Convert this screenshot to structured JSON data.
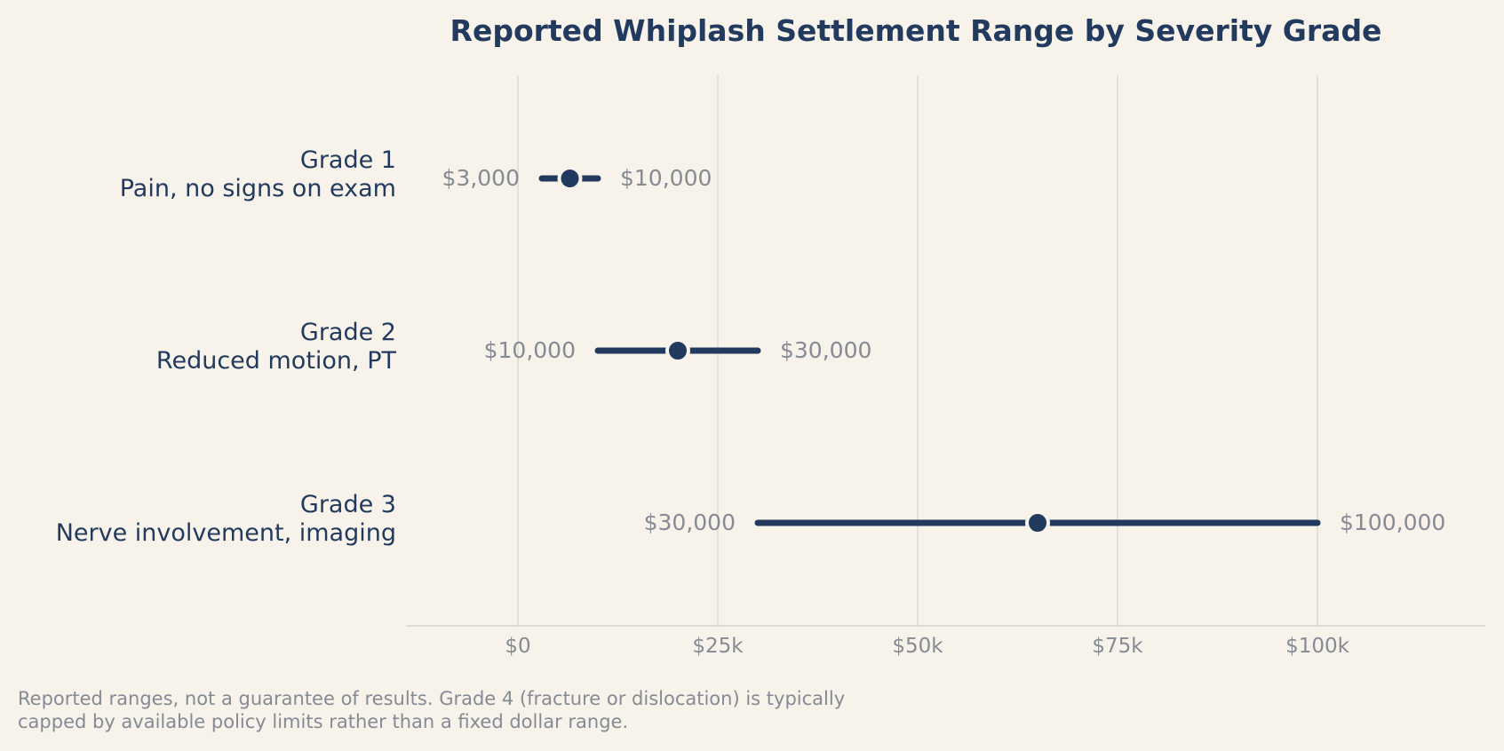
{
  "chart_data": {
    "type": "range",
    "title": "Reported Whiplash Settlement Range by Severity Grade",
    "xlabel": "",
    "ylabel": "",
    "xlim": [
      -14000,
      121000
    ],
    "ticks": [
      {
        "value": 0,
        "label": "$0"
      },
      {
        "value": 25000,
        "label": "$25k"
      },
      {
        "value": 50000,
        "label": "$50k"
      },
      {
        "value": 75000,
        "label": "$75k"
      },
      {
        "value": 100000,
        "label": "$100k"
      }
    ],
    "grid": "vertical",
    "rows": [
      {
        "category": "Grade 1",
        "description": "Pain, no signs on exam",
        "low": 3000,
        "high": 10000,
        "mid": 6500,
        "low_label": "$3,000",
        "high_label": "$10,000"
      },
      {
        "category": "Grade 2",
        "description": "Reduced motion, PT",
        "low": 10000,
        "high": 30000,
        "mid": 20000,
        "low_label": "$10,000",
        "high_label": "$30,000"
      },
      {
        "category": "Grade 3",
        "description": "Nerve involvement, imaging",
        "low": 30000,
        "high": 100000,
        "mid": 65000,
        "low_label": "$30,000",
        "high_label": "$100,000"
      }
    ],
    "colors": {
      "background": "#f7f3ea",
      "series": "#223a5e",
      "title": "#223a5e",
      "category_text": "#223a5e",
      "value_text": "#858a94",
      "grid": "#dcd9d2",
      "axis": "#d6d3cb"
    }
  },
  "footnote": {
    "line1": "Reported ranges, not a guarantee of results. Grade 4 (fracture or dislocation) is typically",
    "line2": "capped by available policy limits rather than a fixed dollar range."
  }
}
